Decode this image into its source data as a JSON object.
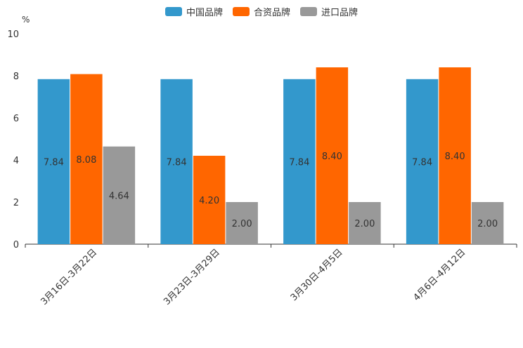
{
  "chart_data": {
    "type": "bar",
    "unit": "%",
    "categories": [
      "3月16日-3月22日",
      "3月23日-3月29日",
      "3月30日-4月5日",
      "4月6日-4月12日"
    ],
    "series": [
      {
        "name": "中国品牌",
        "color": "#3398cc",
        "values": [
          7.84,
          7.84,
          7.84,
          7.84
        ],
        "labels": [
          "7.84",
          "7.84",
          "7.84",
          "7.84"
        ]
      },
      {
        "name": "合资品牌",
        "color": "#ff6600",
        "values": [
          8.08,
          4.2,
          8.4,
          8.4
        ],
        "labels": [
          "8.08",
          "4.20",
          "8.40",
          "8.40"
        ]
      },
      {
        "name": "进口品牌",
        "color": "#999999",
        "values": [
          4.64,
          2.0,
          2.0,
          2.0
        ],
        "labels": [
          "4.64",
          "2.00",
          "2.00",
          "2.00"
        ]
      }
    ],
    "yticks": [
      "0",
      "2",
      "4",
      "6",
      "8",
      "10"
    ],
    "ylim": [
      0,
      10
    ],
    "legend_position": "top-center",
    "grid": false
  }
}
